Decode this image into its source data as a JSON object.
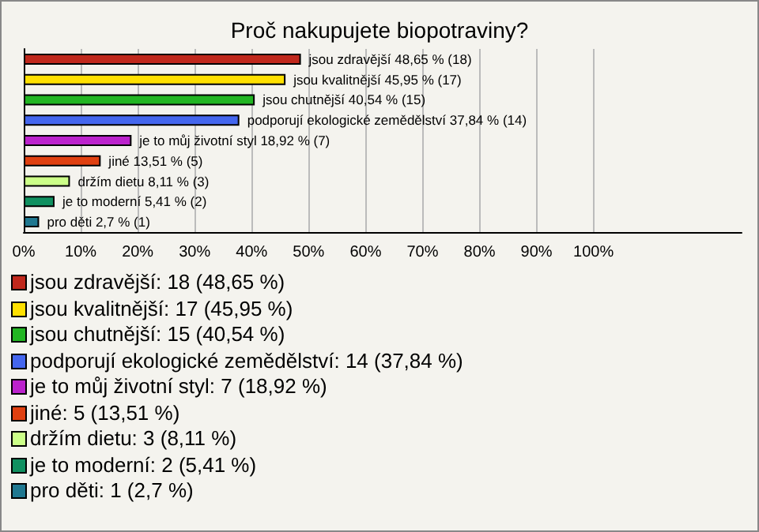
{
  "chart_data": {
    "type": "bar",
    "orientation": "horizontal",
    "title": "Proč nakupujete biopotraviny?",
    "categories": [
      null,
      null,
      null,
      null,
      null,
      null,
      null,
      null,
      null
    ],
    "values": [
      48.65,
      45.95,
      40.54,
      37.84,
      18.92,
      13.51,
      8.11,
      5.41,
      2.7
    ],
    "colors": [
      "#c0281c",
      "#ffe000",
      "#22b522",
      "#4466ee",
      "#bb22cc",
      "#e04010",
      "#ccff88",
      "#109060",
      "#207890"
    ],
    "value_labels": [
      "jsou zdravější 48,65 % (18)",
      "jsou kvalitnější 45,95 % (17)",
      "jsou chutnější 40,54 % (15)",
      "podporují ekologické zemědělství 37,84 % (14)",
      "je to můj životní styl 18,92 % (7)",
      "jiné 13,51 % (5)",
      "držím dietu 8,11 % (3)",
      "je to moderní 5,41 % (2)",
      "pro děti 2,7 % (1)"
    ],
    "xlim": [
      0,
      126
    ],
    "xticks": [
      {
        "value": 0,
        "label": "0%"
      },
      {
        "value": 10,
        "label": "10%"
      },
      {
        "value": 20,
        "label": "20%"
      },
      {
        "value": 30,
        "label": "30%"
      },
      {
        "value": 40,
        "label": "40%"
      },
      {
        "value": 50,
        "label": "50%"
      },
      {
        "value": 60,
        "label": "60%"
      },
      {
        "value": 70,
        "label": "70%"
      },
      {
        "value": 80,
        "label": "80%"
      },
      {
        "value": 90,
        "label": "90%"
      },
      {
        "value": 100,
        "label": "100%"
      }
    ],
    "grid": "x",
    "tick_labels": "x",
    "annotations": [
      "jsou zdravější: 18 (48,65 %)",
      "jsou kvalitnější: 17 (45,95 %)",
      "jsou chutnější: 15 (40,54 %)",
      "podporují ekologické zemědělství: 14 (37,84 %)",
      "je to můj životní styl: 7 (18,92 %)",
      "jiné: 5 (13,51 %)",
      "držím dietu: 3 (8,11 %)",
      "je to moderní: 2 (5,41 %)",
      "pro děti: 1 (2,7 %)"
    ]
  }
}
